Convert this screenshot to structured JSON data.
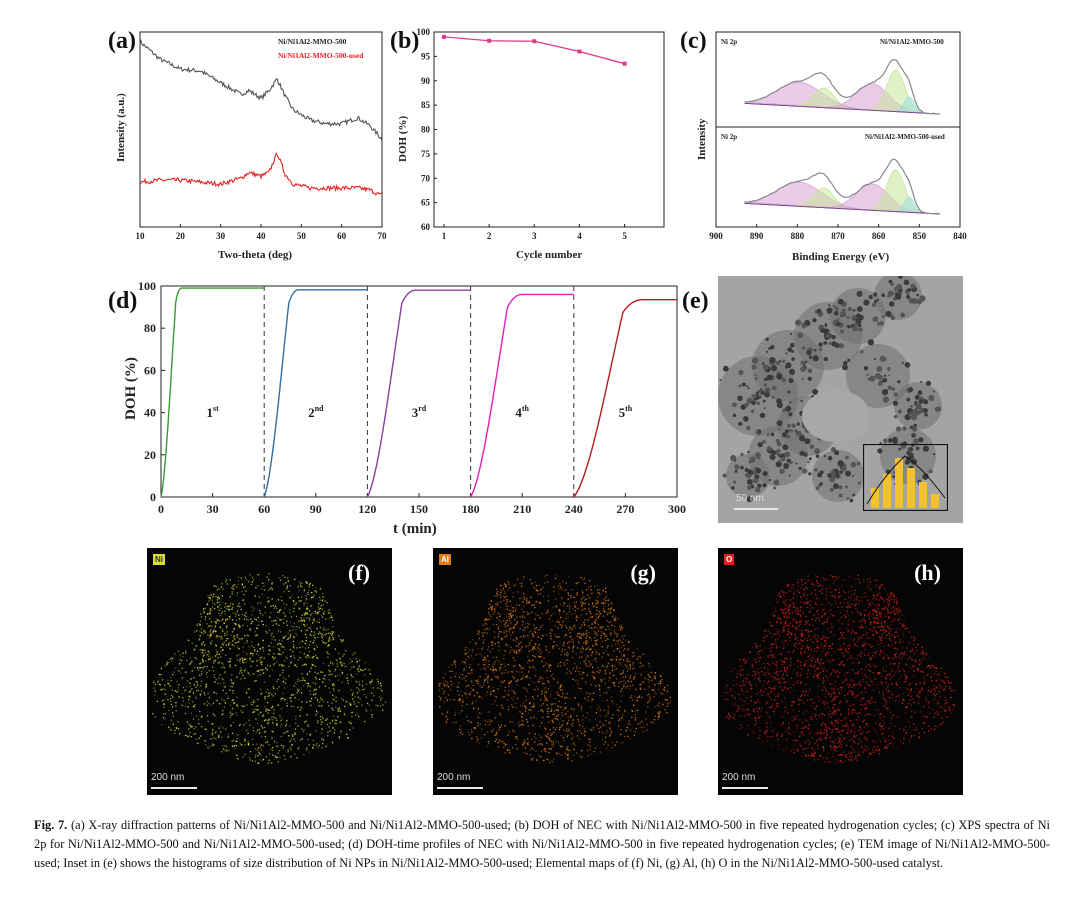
{
  "panels": {
    "a": {
      "letter": "(a)",
      "legend": [
        "Ni/Ni1Al2-MMO-500",
        "Ni/Ni1Al2-MMO-500-used"
      ],
      "ylabel": "Intensity (a.u.)",
      "xlabel": "Two-theta (deg)",
      "xticks": [
        "10",
        "20",
        "30",
        "40",
        "50",
        "60",
        "70"
      ]
    },
    "b": {
      "letter": "(b)",
      "ylabel": "DOH (%)",
      "xlabel": "Cycle number",
      "xticks": [
        "1",
        "2",
        "3",
        "4",
        "5"
      ],
      "yticks": [
        "60",
        "65",
        "70",
        "75",
        "80",
        "85",
        "90",
        "95",
        "100"
      ]
    },
    "c": {
      "letter": "(c)",
      "ylabel": "Intensity",
      "xlabel": "Binding Energy (eV)",
      "xticks": [
        "900",
        "890",
        "880",
        "870",
        "860",
        "850",
        "840"
      ],
      "top_tag": "Ni 2p",
      "top_sample": "Ni/Ni1Al2-MMO-500",
      "bottom_tag": "Ni 2p",
      "bottom_sample": "Ni/Ni1Al2-MMO-500-used"
    },
    "d": {
      "letter": "(d)",
      "ylabel": "DOH (%)",
      "xlabel": "t (min)",
      "xticks": [
        "0",
        "30",
        "60",
        "90",
        "120",
        "150",
        "180",
        "210",
        "240",
        "270",
        "300"
      ],
      "yticks": [
        "0",
        "20",
        "40",
        "60",
        "80",
        "100"
      ],
      "cycles": [
        {
          "num": "1",
          "sup": "st"
        },
        {
          "num": "2",
          "sup": "nd"
        },
        {
          "num": "3",
          "sup": "rd"
        },
        {
          "num": "4",
          "sup": "th"
        },
        {
          "num": "5",
          "sup": "th"
        }
      ]
    },
    "e": {
      "letter": "(e)",
      "scale": "50 nm"
    },
    "f": {
      "letter": "(f)",
      "element": "Ni",
      "scale": "200 nm",
      "color": "#d8dc3a"
    },
    "g": {
      "letter": "(g)",
      "element": "Al",
      "scale": "200 nm",
      "color": "#e07b1a"
    },
    "h": {
      "letter": "(h)",
      "element": "O",
      "scale": "200 nm",
      "color": "#e02020"
    }
  },
  "chart_data": [
    {
      "id": "a",
      "type": "line",
      "title": "",
      "xlabel": "Two-theta (deg)",
      "ylabel": "Intensity (a.u.)",
      "xlim": [
        10,
        70
      ],
      "series": [
        {
          "name": "Ni/Ni1Al2-MMO-500",
          "color": "#555555",
          "x": [
            10,
            15,
            20,
            25,
            30,
            35,
            37,
            40,
            42,
            44,
            46,
            48,
            52,
            56,
            60,
            64,
            67,
            70
          ],
          "y": [
            0.95,
            0.86,
            0.81,
            0.8,
            0.74,
            0.68,
            0.7,
            0.66,
            0.7,
            0.76,
            0.67,
            0.6,
            0.55,
            0.53,
            0.53,
            0.56,
            0.52,
            0.45
          ]
        },
        {
          "name": "Ni/Ni1Al2-MMO-500-used",
          "color": "#e52222",
          "x": [
            10,
            15,
            20,
            25,
            30,
            35,
            37,
            40,
            42,
            44,
            46,
            48,
            52,
            56,
            60,
            64,
            67,
            70
          ],
          "y": [
            0.23,
            0.24,
            0.24,
            0.23,
            0.22,
            0.25,
            0.28,
            0.26,
            0.28,
            0.38,
            0.27,
            0.22,
            0.2,
            0.2,
            0.2,
            0.2,
            0.19,
            0.16
          ]
        }
      ]
    },
    {
      "id": "b",
      "type": "line",
      "xlabel": "Cycle number",
      "ylabel": "DOH (%)",
      "ylim": [
        60,
        100
      ],
      "x": [
        1,
        2,
        3,
        4,
        5
      ],
      "series": [
        {
          "name": "DOH",
          "color": "#e0388c",
          "values": [
            99.0,
            98.2,
            98.1,
            96.0,
            93.5
          ]
        }
      ]
    },
    {
      "id": "c",
      "type": "line",
      "xlabel": "Binding Energy (eV)",
      "ylabel": "Intensity",
      "xlim": [
        900,
        840
      ],
      "series": [
        {
          "name": "Ni/Ni1Al2-MMO-500 (Ni 2p)",
          "peaks_eV": [
            879.5,
            873.5,
            861.5,
            855.8,
            852.5
          ]
        },
        {
          "name": "Ni/Ni1Al2-MMO-500-used (Ni 2p)",
          "peaks_eV": [
            879.5,
            873.5,
            861.5,
            855.8,
            852.5
          ]
        }
      ]
    },
    {
      "id": "d",
      "type": "line",
      "xlabel": "t (min)",
      "ylabel": "DOH (%)",
      "xlim": [
        0,
        300
      ],
      "ylim": [
        0,
        100
      ],
      "cycle_boundaries": [
        60,
        120,
        180,
        240
      ],
      "series": [
        {
          "name": "1st",
          "color": "#3c9a35",
          "start": 0,
          "end": 60,
          "final": 99.0,
          "rise": 12
        },
        {
          "name": "2nd",
          "color": "#2f6fa3",
          "start": 60,
          "end": 120,
          "final": 98.2,
          "rise": 20
        },
        {
          "name": "3rd",
          "color": "#8a3fa0",
          "start": 120,
          "end": 180,
          "final": 98.0,
          "rise": 28
        },
        {
          "name": "4th",
          "color": "#e022b8",
          "start": 180,
          "end": 240,
          "final": 96.0,
          "rise": 30
        },
        {
          "name": "5th",
          "color": "#b01e1e",
          "start": 240,
          "end": 300,
          "final": 93.5,
          "rise": 40
        }
      ]
    }
  ],
  "caption": {
    "label": "Fig. 7.",
    "text": "(a) X-ray diffraction patterns of Ni/Ni1Al2-MMO-500 and Ni/Ni1Al2-MMO-500-used; (b) DOH of NEC with Ni/Ni1Al2-MMO-500 in five repeated hydrogenation cycles; (c) XPS spectra of Ni 2p for Ni/Ni1Al2-MMO-500 and Ni/Ni1Al2-MMO-500-used; (d) DOH-time profiles of NEC with Ni/Ni1Al2-MMO-500 in five repeated hydrogenation cycles; (e) TEM image of Ni/Ni1Al2-MMO-500-used; Inset in (e) shows the histograms of size distribution of Ni NPs in Ni/Ni1Al2-MMO-500-used; Elemental maps of (f) Ni, (g) Al, (h) O in the Ni/Ni1Al2-MMO-500-used catalyst."
  }
}
